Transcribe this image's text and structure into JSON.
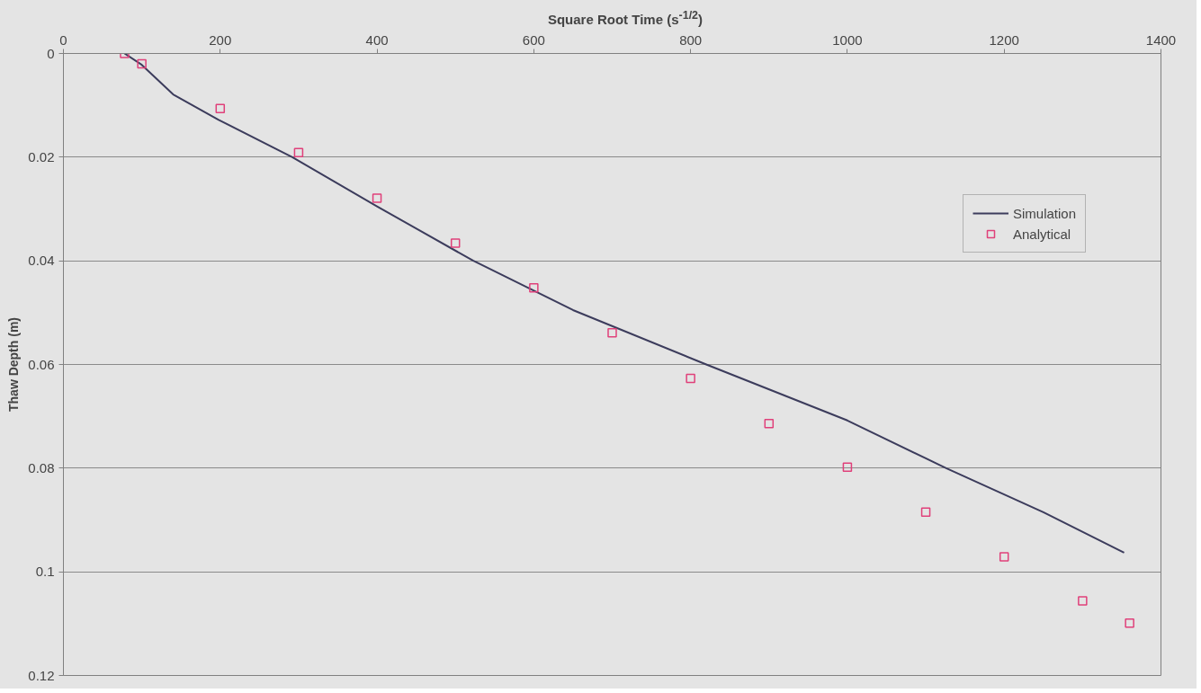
{
  "chart_data": {
    "type": "scatter",
    "xlabel": "Square Root Time (s$^{-1/2}$)",
    "ylabel": "Thaw Depth (m)",
    "xlim": [
      0,
      1400
    ],
    "xticks": [
      0,
      200,
      400,
      600,
      800,
      1000,
      1200,
      1400
    ],
    "ylim": [
      0.12,
      0
    ],
    "yticks": [
      0,
      0.02,
      0.04,
      0.06,
      0.08,
      0.1,
      0.12
    ],
    "grid": "y",
    "legend": "right",
    "series": [
      {
        "name": "Simulation",
        "type": "line",
        "color": "#3c3c5c",
        "line_style": "solid",
        "x": [
          78,
          100,
          140,
          198,
          292,
          400,
          523,
          650,
          820,
          1000,
          1126,
          1250,
          1353
        ],
        "values": [
          0,
          0.0022,
          0.0079,
          0.0128,
          0.02,
          0.0295,
          0.04,
          0.0495,
          0.06,
          0.0708,
          0.08,
          0.0885,
          0.0963
        ]
      },
      {
        "name": "Analytical",
        "color": "#e0407a",
        "marker": "square",
        "x": [
          78,
          100,
          200,
          300,
          400,
          500,
          600,
          700,
          800,
          900,
          1000,
          1100,
          1200,
          1300,
          1360
        ],
        "values": [
          0,
          0.002,
          0.0106,
          0.0191,
          0.0279,
          0.0366,
          0.0452,
          0.0539,
          0.0627,
          0.0714,
          0.0798,
          0.0885,
          0.0971,
          0.1056,
          0.1099
        ]
      }
    ]
  }
}
